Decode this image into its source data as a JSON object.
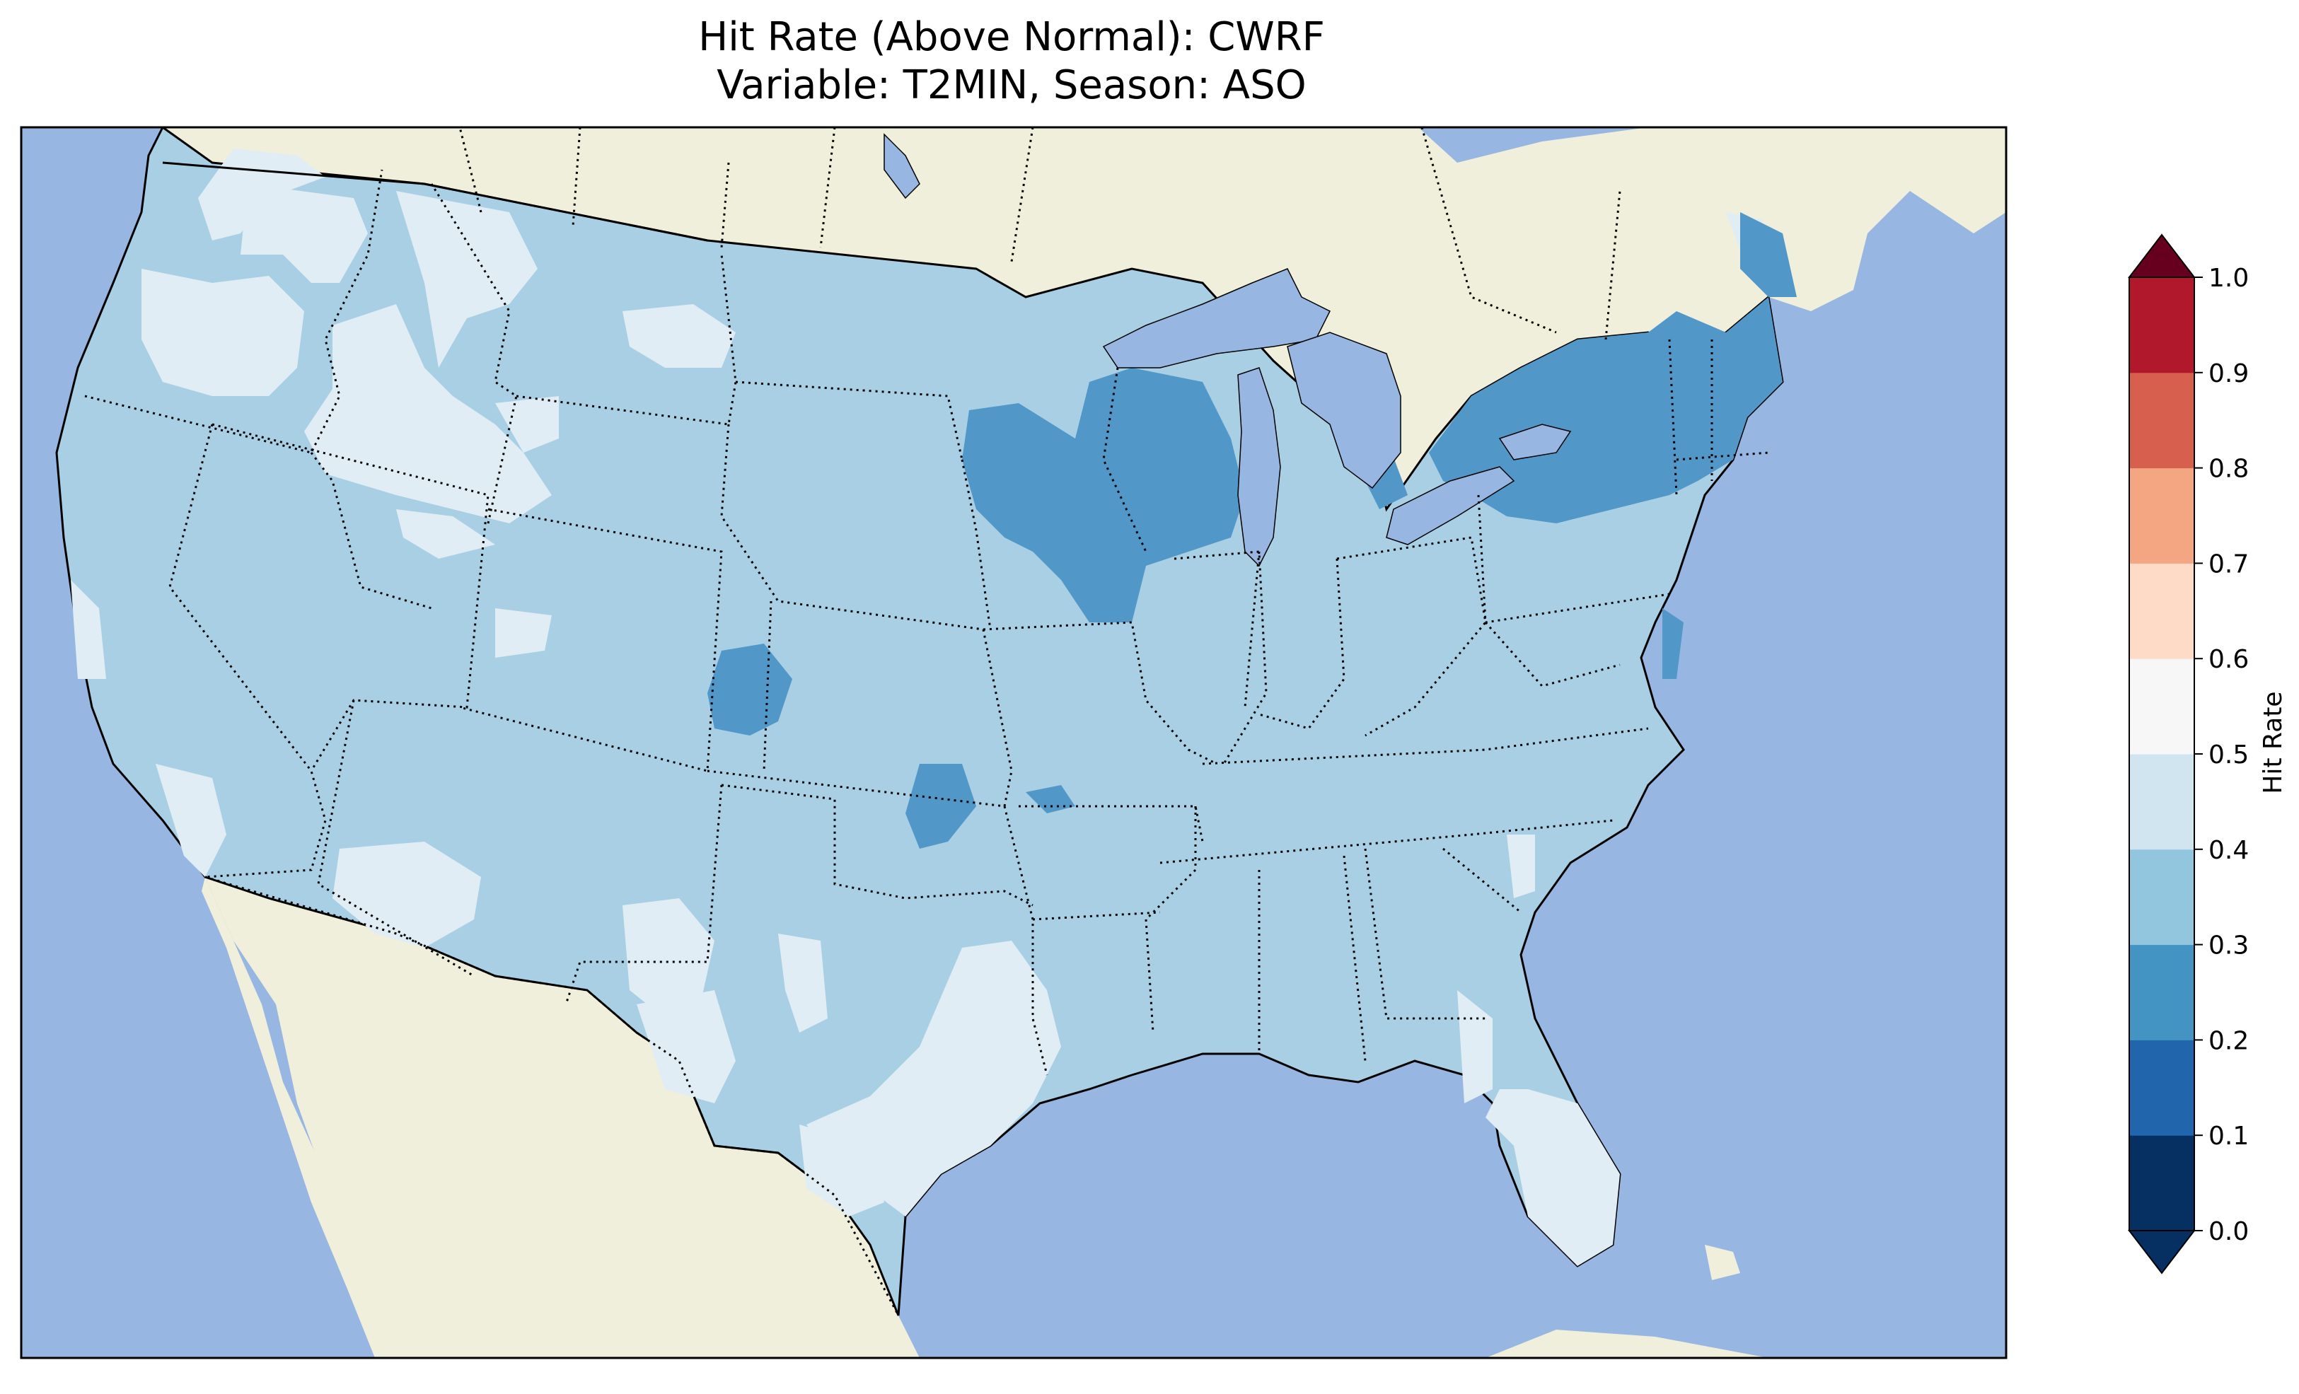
{
  "title_line1": "Hit Rate (Above Normal): CWRF",
  "title_line2": "Variable: T2MIN, Season: ASO",
  "colorbar": {
    "label": "Hit Rate",
    "ticks": [
      "0.0",
      "0.1",
      "0.2",
      "0.3",
      "0.4",
      "0.5",
      "0.6",
      "0.7",
      "0.8",
      "0.9",
      "1.0"
    ],
    "colors": [
      "#053061",
      "#2166ac",
      "#4393c3",
      "#92c5de",
      "#d1e5f0",
      "#f7f7f7",
      "#fddbc7",
      "#f4a582",
      "#d6604d",
      "#b2182b",
      "#67001f"
    ],
    "under_color": "#053061",
    "over_color": "#67001f",
    "extend": "both"
  },
  "colors": {
    "ocean": "#97b6e1",
    "land": "#efefdb",
    "class_0_3_0_4": "#a9cfe4",
    "class_0_4_0_5": "#e1edf4",
    "class_0_2_0_3": "#5197c8",
    "lakes": "#97b6e1"
  },
  "chart_data": {
    "type": "heatmap",
    "title": "Hit Rate (Above Normal): CWRF\nVariable: T2MIN, Season: ASO",
    "variable": "T2MIN",
    "season": "ASO",
    "colorbar_label": "Hit Rate",
    "colorbar_range": [
      0.0,
      1.0
    ],
    "colorbar_levels": [
      0.0,
      0.1,
      0.2,
      0.3,
      0.4,
      0.5,
      0.6,
      0.7,
      0.8,
      0.9,
      1.0
    ],
    "regions": [
      {
        "name": "Most of CONUS",
        "hit_rate_bin": "0.3-0.4"
      },
      {
        "name": "Northwest / Idaho / Montana / Wyoming patches",
        "hit_rate_bin": "0.4-0.5"
      },
      {
        "name": "Southern California / Arizona / New Mexico / Texas patches",
        "hit_rate_bin": "0.4-0.5"
      },
      {
        "name": "Florida peninsula",
        "hit_rate_bin": "0.4-0.5"
      },
      {
        "name": "Upper Midwest (Minnesota, Wisconsin, Iowa)",
        "hit_rate_bin": "0.2-0.3"
      },
      {
        "name": "New York / New England",
        "hit_rate_bin": "0.2-0.3"
      },
      {
        "name": "Eastern Colorado patch",
        "hit_rate_bin": "0.2-0.3"
      },
      {
        "name": "Oklahoma patch",
        "hit_rate_bin": "0.2-0.3"
      }
    ]
  }
}
